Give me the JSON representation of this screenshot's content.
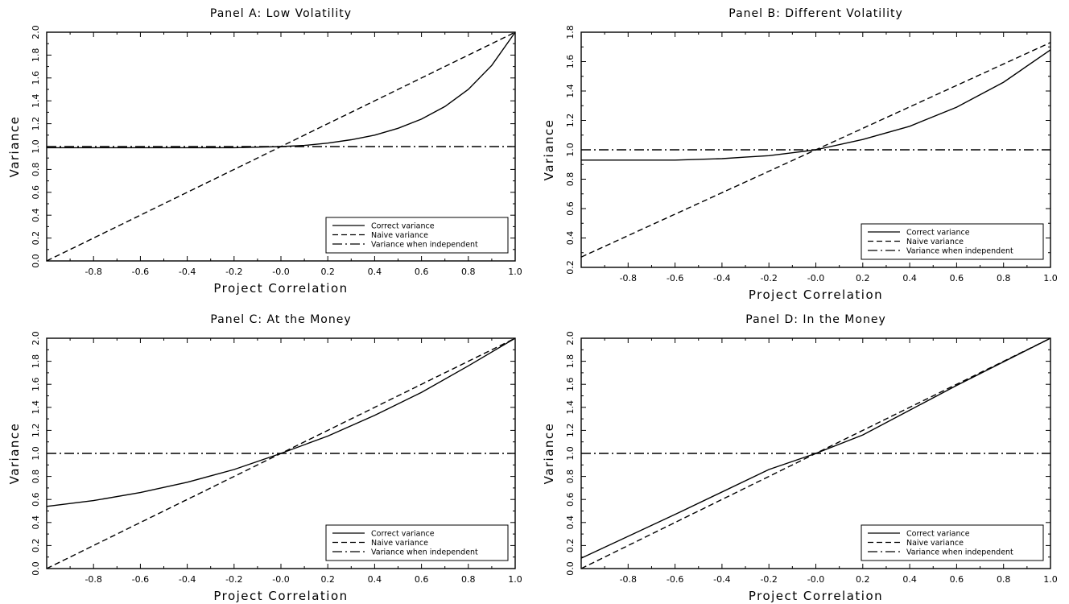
{
  "chart_data": [
    {
      "type": "line",
      "title": "Panel A: Low Volatility",
      "xlabel": "Project Correlation",
      "ylabel": "Variance",
      "xlim": [
        -1.0,
        1.0
      ],
      "ylim": [
        0.0,
        2.0
      ],
      "xticks": [
        "-0.8",
        "-0.6",
        "-0.4",
        "-0.2",
        "-0.0",
        "0.2",
        "0.4",
        "0.6",
        "0.8",
        "1.0"
      ],
      "yticks": [
        "0.0",
        "0.2",
        "0.4",
        "0.6",
        "0.8",
        "1.0",
        "1.2",
        "1.4",
        "1.6",
        "1.8",
        "2.0"
      ],
      "legend_position": "bottom-right",
      "series": [
        {
          "name": "Correct variance",
          "style": "solid",
          "x": [
            -1.0,
            -0.8,
            -0.6,
            -0.4,
            -0.2,
            0.0,
            0.1,
            0.2,
            0.3,
            0.4,
            0.5,
            0.6,
            0.7,
            0.8,
            0.9,
            1.0
          ],
          "y": [
            0.99,
            0.99,
            0.99,
            0.99,
            0.99,
            1.0,
            1.01,
            1.03,
            1.06,
            1.1,
            1.16,
            1.24,
            1.35,
            1.5,
            1.71,
            2.0
          ]
        },
        {
          "name": "Naive variance",
          "style": "dashed",
          "x": [
            -1.0,
            1.0
          ],
          "y": [
            0.0,
            2.0
          ]
        },
        {
          "name": "Variance when independent",
          "style": "dashdot",
          "x": [
            -1.0,
            1.0
          ],
          "y": [
            1.0,
            1.0
          ]
        }
      ]
    },
    {
      "type": "line",
      "title": "Panel B: Different Volatility",
      "xlabel": "Project Correlation",
      "ylabel": "Variance",
      "xlim": [
        -1.0,
        1.0
      ],
      "ylim": [
        0.2,
        1.8
      ],
      "xticks": [
        "-0.8",
        "-0.6",
        "-0.4",
        "-0.2",
        "-0.0",
        "0.2",
        "0.4",
        "0.6",
        "0.8",
        "1.0"
      ],
      "yticks": [
        "0.2",
        "0.4",
        "0.6",
        "0.8",
        "1.0",
        "1.2",
        "1.4",
        "1.6",
        "1.8"
      ],
      "legend_position": "bottom-right",
      "series": [
        {
          "name": "Correct variance",
          "style": "solid",
          "x": [
            -1.0,
            -0.8,
            -0.6,
            -0.4,
            -0.3,
            -0.2,
            -0.1,
            0.0,
            0.2,
            0.4,
            0.6,
            0.8,
            1.0
          ],
          "y": [
            0.93,
            0.93,
            0.93,
            0.94,
            0.95,
            0.96,
            0.98,
            1.0,
            1.07,
            1.16,
            1.29,
            1.46,
            1.68
          ]
        },
        {
          "name": "Naive variance",
          "style": "dashed",
          "x": [
            -1.0,
            0.0,
            1.0
          ],
          "y": [
            0.27,
            1.0,
            1.73
          ]
        },
        {
          "name": "Variance when independent",
          "style": "dashdot",
          "x": [
            -1.0,
            1.0
          ],
          "y": [
            1.0,
            1.0
          ]
        }
      ]
    },
    {
      "type": "line",
      "title": "Panel C: At the Money",
      "xlabel": "Project Correlation",
      "ylabel": "Variance",
      "xlim": [
        -1.0,
        1.0
      ],
      "ylim": [
        0.0,
        2.0
      ],
      "xticks": [
        "-0.8",
        "-0.6",
        "-0.4",
        "-0.2",
        "-0.0",
        "0.2",
        "0.4",
        "0.6",
        "0.8",
        "1.0"
      ],
      "yticks": [
        "0.0",
        "0.2",
        "0.4",
        "0.6",
        "0.8",
        "1.0",
        "1.2",
        "1.4",
        "1.6",
        "1.8",
        "2.0"
      ],
      "legend_position": "bottom-right",
      "series": [
        {
          "name": "Correct variance",
          "style": "solid",
          "x": [
            -1.0,
            -0.8,
            -0.6,
            -0.4,
            -0.2,
            0.0,
            0.2,
            0.4,
            0.6,
            0.8,
            1.0
          ],
          "y": [
            0.54,
            0.59,
            0.66,
            0.75,
            0.86,
            1.0,
            1.15,
            1.33,
            1.53,
            1.76,
            2.0
          ]
        },
        {
          "name": "Naive variance",
          "style": "dashed",
          "x": [
            -1.0,
            1.0
          ],
          "y": [
            0.0,
            2.0
          ]
        },
        {
          "name": "Variance when independent",
          "style": "dashdot",
          "x": [
            -1.0,
            1.0
          ],
          "y": [
            1.0,
            1.0
          ]
        }
      ]
    },
    {
      "type": "line",
      "title": "Panel D: In the Money",
      "xlabel": "Project Correlation",
      "ylabel": "Variance",
      "xlim": [
        -1.0,
        1.0
      ],
      "ylim": [
        0.0,
        2.0
      ],
      "xticks": [
        "-0.8",
        "-0.6",
        "-0.4",
        "-0.2",
        "-0.0",
        "0.2",
        "0.4",
        "0.6",
        "0.8",
        "1.0"
      ],
      "yticks": [
        "0.0",
        "0.2",
        "0.4",
        "0.6",
        "0.8",
        "1.0",
        "1.2",
        "1.4",
        "1.6",
        "1.8",
        "2.0"
      ],
      "legend_position": "bottom-right",
      "series": [
        {
          "name": "Correct variance",
          "style": "solid",
          "x": [
            -1.0,
            -0.6,
            -0.2,
            0.0,
            0.2,
            0.6,
            1.0
          ],
          "y": [
            0.09,
            0.47,
            0.86,
            1.0,
            1.16,
            1.59,
            2.0
          ]
        },
        {
          "name": "Naive variance",
          "style": "dashed",
          "x": [
            -1.0,
            1.0
          ],
          "y": [
            0.0,
            2.0
          ]
        },
        {
          "name": "Variance when independent",
          "style": "dashdot",
          "x": [
            -1.0,
            1.0
          ],
          "y": [
            1.0,
            1.0
          ]
        }
      ]
    }
  ]
}
